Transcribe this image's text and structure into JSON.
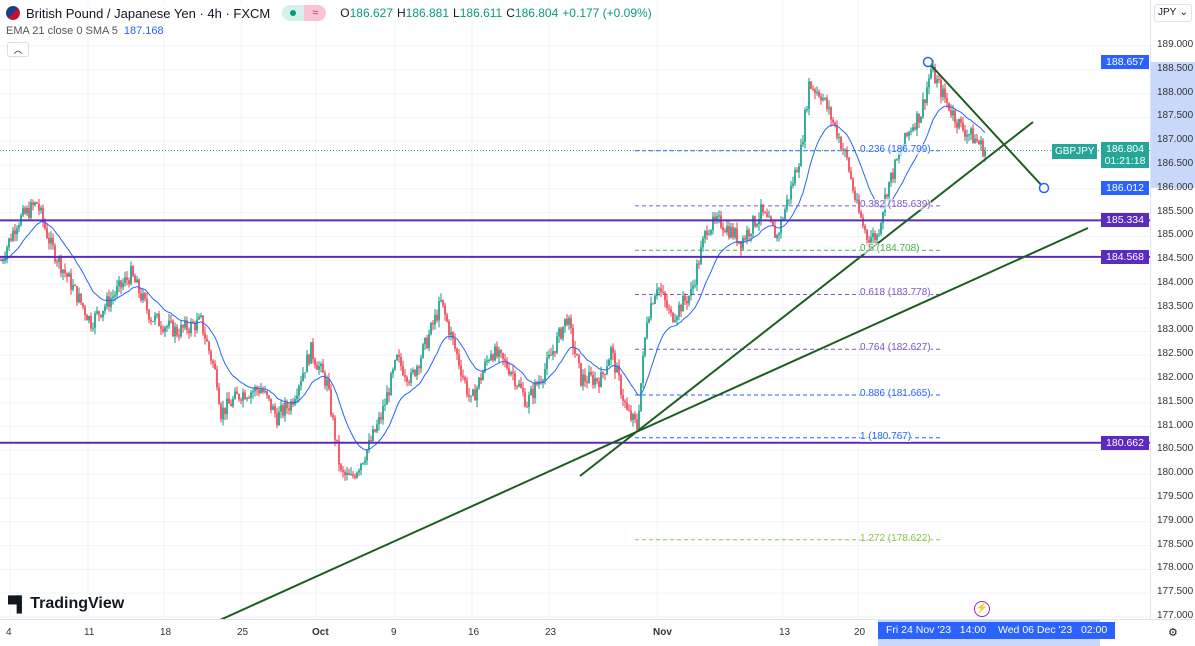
{
  "header": {
    "title": "British Pound / Japanese Yen · 4h · FXCM",
    "open_label": "O",
    "open": "186.627",
    "high_label": "H",
    "high": "186.881",
    "low_label": "L",
    "low": "186.611",
    "close_label": "C",
    "close": "186.804",
    "change": "+0.177 (+0.09%)"
  },
  "indicator": {
    "label": "EMA 21 close 0 SMA 5",
    "value": "187.168"
  },
  "currency": "JPY",
  "price_axis": [
    "189.000",
    "188.500",
    "188.000",
    "187.500",
    "187.000",
    "186.500",
    "186.000",
    "185.500",
    "185.000",
    "184.500",
    "184.000",
    "183.500",
    "183.000",
    "182.500",
    "182.000",
    "181.500",
    "181.000",
    "180.500",
    "180.000",
    "179.500",
    "179.000",
    "178.500",
    "178.000",
    "177.500",
    "177.000"
  ],
  "price_tags": {
    "upper": "188.657",
    "lower": "186.012",
    "current": "186.804",
    "countdown": "01:21:18",
    "symbol": "GBPJPY",
    "h1": "185.334",
    "h2": "184.568",
    "h3": "180.662"
  },
  "time_axis": [
    "4",
    "11",
    "18",
    "25",
    "Oct",
    "9",
    "16",
    "23",
    "Nov",
    "13",
    "20"
  ],
  "time_selection": {
    "start": "Fri 24 Nov '23   14:00",
    "end": "Wed 06 Dec '23   02:00"
  },
  "fib_levels": [
    {
      "label": "0.236 (186.799)",
      "price": 186.799,
      "color": "#2962ff"
    },
    {
      "label": "0.382 (185.639)",
      "price": 185.639,
      "color": "#7e57c2"
    },
    {
      "label": "0.5 (184.708)",
      "price": 184.708,
      "color": "#4caf50"
    },
    {
      "label": "0.618 (183.778)",
      "price": 183.778,
      "color": "#7e57c2"
    },
    {
      "label": "0.764 (182.627)",
      "price": 182.627,
      "color": "#7e57c2"
    },
    {
      "label": "0.886 (181.665)",
      "price": 181.665,
      "color": "#2962ff"
    },
    {
      "label": "1 (180.767)",
      "price": 180.767,
      "color": "#2962ff"
    },
    {
      "label": "1.272 (178.622)",
      "price": 178.622,
      "color": "#8bc34a"
    }
  ],
  "brand": "TradingView",
  "colors": {
    "up": "#089981",
    "down": "#f23645",
    "ema": "#2962ff",
    "hline": "#5b2bbd",
    "trend": "#1b5e20"
  },
  "chart_data": {
    "type": "candlestick",
    "symbol": "GBPJPY",
    "timeframe": "4h",
    "ylim": [
      177,
      189.3
    ],
    "horizontal_lines": [
      185.334,
      184.568,
      180.662
    ],
    "price_path": [
      [
        0,
        184.5
      ],
      [
        8,
        185.3
      ],
      [
        18,
        185.7
      ],
      [
        25,
        184.8
      ],
      [
        35,
        184.0
      ],
      [
        45,
        183.2
      ],
      [
        55,
        183.7
      ],
      [
        65,
        184.2
      ],
      [
        75,
        183.3
      ],
      [
        88,
        183.0
      ],
      [
        100,
        183.2
      ],
      [
        108,
        182.0
      ],
      [
        110,
        181.3
      ],
      [
        120,
        181.7
      ],
      [
        130,
        181.8
      ],
      [
        138,
        181.2
      ],
      [
        145,
        181.5
      ],
      [
        155,
        182.6
      ],
      [
        163,
        181.9
      ],
      [
        170,
        180.0
      ],
      [
        175,
        179.9
      ],
      [
        183,
        180.5
      ],
      [
        190,
        181.2
      ],
      [
        198,
        182.4
      ],
      [
        205,
        182.0
      ],
      [
        213,
        182.8
      ],
      [
        220,
        183.6
      ],
      [
        228,
        182.5
      ],
      [
        235,
        181.5
      ],
      [
        245,
        182.6
      ],
      [
        255,
        182.2
      ],
      [
        263,
        181.5
      ],
      [
        273,
        182.3
      ],
      [
        283,
        183.3
      ],
      [
        290,
        182.0
      ],
      [
        300,
        182.0
      ],
      [
        305,
        182.6
      ],
      [
        313,
        181.3
      ],
      [
        318,
        181.0
      ],
      [
        323,
        183.3
      ],
      [
        328,
        184.0
      ],
      [
        335,
        183.3
      ],
      [
        345,
        183.8
      ],
      [
        353,
        185.2
      ],
      [
        360,
        185.3
      ],
      [
        370,
        184.9
      ],
      [
        380,
        185.5
      ],
      [
        388,
        185.0
      ],
      [
        395,
        186.0
      ],
      [
        400,
        186.8
      ],
      [
        404,
        188.2
      ],
      [
        410,
        188.0
      ],
      [
        418,
        187.2
      ],
      [
        423,
        186.6
      ],
      [
        428,
        185.6
      ],
      [
        433,
        185.0
      ],
      [
        438,
        185.0
      ],
      [
        443,
        186.0
      ],
      [
        450,
        186.8
      ],
      [
        455,
        187.3
      ],
      [
        460,
        187.6
      ],
      [
        465,
        188.5
      ],
      [
        473,
        187.8
      ],
      [
        480,
        187.3
      ],
      [
        488,
        187.0
      ],
      [
        492,
        186.804
      ]
    ]
  }
}
